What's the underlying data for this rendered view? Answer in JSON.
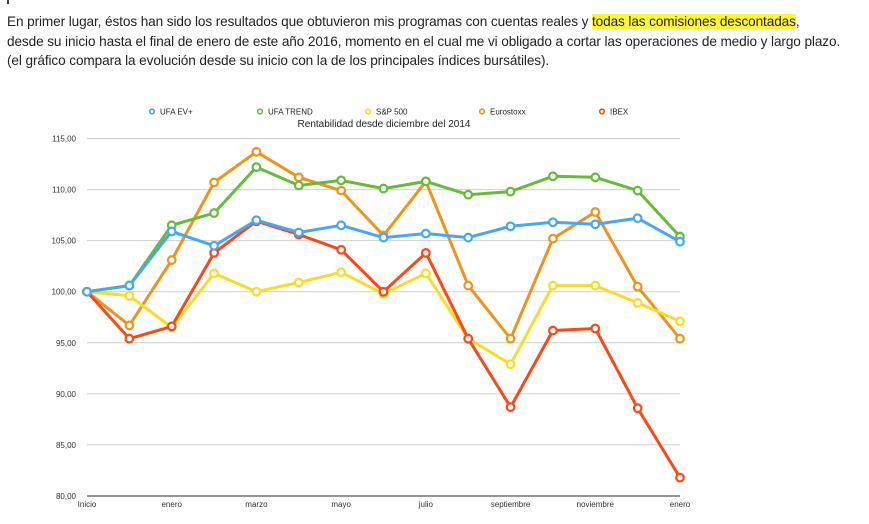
{
  "article": {
    "line1_before": "En primer lugar, éstos han sido los resultados que obtuvieron mis programas con cuentas reales y ",
    "line1_highlight": "todas las comisiones descontadas",
    "line1_after": ",",
    "line2": "desde su inicio hasta el final de enero de este año 2016, momento en el cual me vi obligado a cortar las operaciones de medio y largo plazo.",
    "line3": "(el gráfico compara la evolución desde su inicio con la de los principales índices bursátiles).",
    "highlight_color": "#fff63a"
  },
  "chart_data": {
    "type": "line",
    "title": "Rentabilidad desde diciembre del 2014",
    "xlabel": "",
    "ylabel": "",
    "ylim": [
      80,
      115
    ],
    "yticks": [
      80,
      85,
      90,
      95,
      100,
      105,
      110,
      115
    ],
    "ytick_labels": [
      "80,00",
      "85,00",
      "90,00",
      "95,00",
      "100,00",
      "105,00",
      "110,00",
      "115,00"
    ],
    "grid": true,
    "legend_position": "top",
    "x_count": 15,
    "x_labels": [
      {
        "index": 0,
        "label": "Inicio"
      },
      {
        "index": 2,
        "label": "enero"
      },
      {
        "index": 4,
        "label": "marzo"
      },
      {
        "index": 6,
        "label": "mayo"
      },
      {
        "index": 8,
        "label": "julio"
      },
      {
        "index": 10,
        "label": "septiembre"
      },
      {
        "index": 12,
        "label": "noviembre"
      },
      {
        "index": 14,
        "label": "enero"
      }
    ],
    "series": [
      {
        "name": "UFA EV+",
        "color": "#4aa6f5",
        "values": [
          100,
          100.6,
          105.9,
          104.5,
          107.0,
          105.8,
          106.5,
          105.3,
          105.7,
          105.3,
          106.4,
          106.8,
          106.6,
          107.2,
          104.9
        ]
      },
      {
        "name": "UFA TREND",
        "color": "#66bb3a",
        "values": [
          100,
          100.6,
          106.5,
          107.7,
          112.2,
          110.4,
          110.9,
          110.1,
          110.8,
          109.5,
          109.8,
          111.3,
          111.2,
          109.9,
          105.4
        ]
      },
      {
        "name": "S&P 500",
        "color": "#f8dc26",
        "values": [
          100,
          99.6,
          96.5,
          101.8,
          100.0,
          100.9,
          101.9,
          99.8,
          101.8,
          95.4,
          92.9,
          100.6,
          100.6,
          98.9,
          97.1
        ]
      },
      {
        "name": "Eurostoxx",
        "color": "#ee9418",
        "values": [
          100,
          96.7,
          103.1,
          110.7,
          113.7,
          111.2,
          109.9,
          105.5,
          110.8,
          100.6,
          95.4,
          105.2,
          107.8,
          100.5,
          95.4
        ]
      },
      {
        "name": "IBEX",
        "color": "#fd4716",
        "values": [
          100,
          95.4,
          96.6,
          103.8,
          106.9,
          105.6,
          104.1,
          100.0,
          103.8,
          95.4,
          88.7,
          96.2,
          96.4,
          88.6,
          81.8
        ]
      }
    ],
    "draw_order": [
      3,
      2,
      4,
      1,
      0
    ]
  }
}
